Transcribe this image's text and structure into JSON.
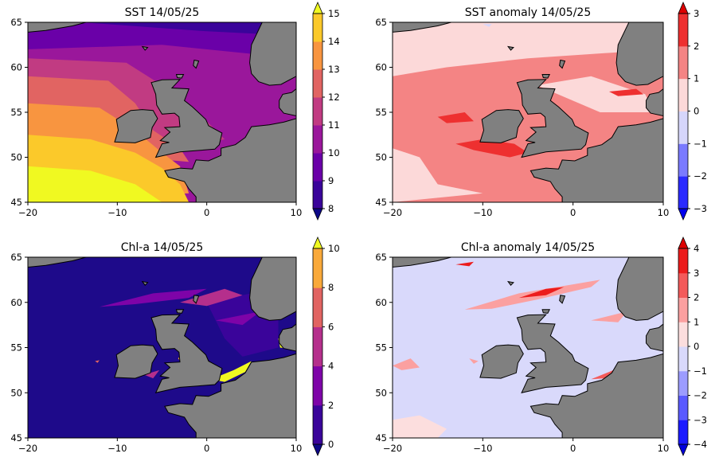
{
  "xticks": [
    "−20",
    "−10",
    "0",
    "10"
  ],
  "yticks": [
    "45",
    "50",
    "55",
    "60",
    "65"
  ],
  "panels": [
    {
      "title": "SST 14/05/25",
      "colorbar": {
        "ticks": [
          "8",
          "9",
          "10",
          "11",
          "12",
          "13",
          "14",
          "15"
        ],
        "colors": [
          "#3a049a",
          "#6a00a8",
          "#9a179b",
          "#c13b82",
          "#e16462",
          "#f89540",
          "#fbc92a"
        ],
        "under": "#0d0887",
        "over": "#f0f921"
      }
    },
    {
      "title": "SST anomaly 14/05/25",
      "colorbar": {
        "ticks": [
          "−3",
          "−2",
          "−1",
          "0",
          "1",
          "2",
          "3"
        ],
        "colors": [
          "#2a2aff",
          "#7a7aff",
          "#d6d6fb",
          "#fcd9d9",
          "#f48484",
          "#ee3030"
        ],
        "under": "#0000ee",
        "over": "#dd0000"
      }
    },
    {
      "title": "Chl-a 14/05/25",
      "colorbar": {
        "ticks": [
          "0",
          "2",
          "4",
          "6",
          "8",
          "10"
        ],
        "colors": [
          "#3a049a",
          "#7e03a8",
          "#b52f8c",
          "#e16462",
          "#f9a93a"
        ],
        "under": "#0d0887",
        "over": "#f0f921"
      }
    },
    {
      "title": "Chl-a anomaly 14/05/25",
      "colorbar": {
        "ticks": [
          "−4",
          "−3",
          "−2",
          "−1",
          "0",
          "1",
          "2",
          "3",
          "4"
        ],
        "colors": [
          "#1a1aff",
          "#5a5aff",
          "#9c9cff",
          "#d9d9fb",
          "#fcdede",
          "#fba0a0",
          "#f35a5a",
          "#ec1c1c"
        ],
        "under": "#0000dd",
        "over": "#dd0000"
      }
    }
  ],
  "land_color": "#808080"
}
